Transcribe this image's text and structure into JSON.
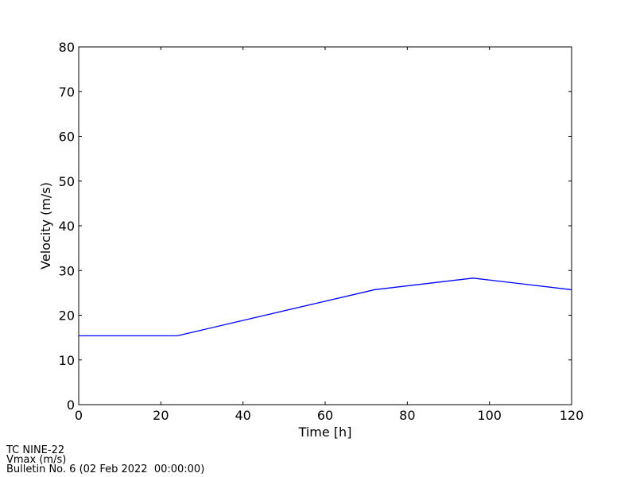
{
  "chart_data": {
    "type": "line",
    "x_label": "Time [h]",
    "y_label": "Velocity (m/s)",
    "x": [
      0,
      24,
      72,
      96,
      120
    ],
    "series": [
      {
        "name": "Vmax",
        "color": "#0000ff",
        "values": [
          15.4,
          15.4,
          25.7,
          28.3,
          25.7
        ]
      }
    ],
    "xlim": [
      0,
      120
    ],
    "xticks": [
      0,
      20,
      40,
      60,
      80,
      100,
      120
    ],
    "ylim": [
      0,
      80
    ],
    "yticks": [
      0,
      10,
      20,
      30,
      40,
      50,
      60,
      70,
      80
    ],
    "grid": false,
    "footer": [
      "TC NINE-22",
      "Vmax (m/s)",
      "Bulletin No. 6 (02 Feb 2022  00:00:00)"
    ]
  }
}
